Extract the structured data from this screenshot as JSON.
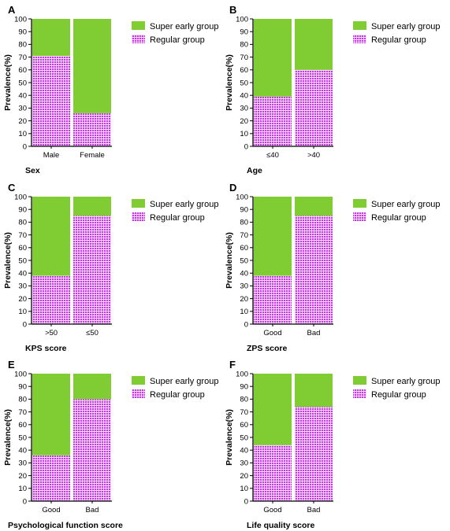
{
  "colors": {
    "super_early": "#7fcc33",
    "regular": "#cc33ee",
    "regular_bg": "#f6d9fb",
    "axis": "#000000"
  },
  "legend": [
    "Super early group",
    "Regular group"
  ],
  "chart_data": [
    {
      "type": "bar",
      "stacked": true,
      "panel": "A",
      "xlabel": "Sex",
      "ylabel": "Prevalence(%)",
      "ylim": [
        0,
        100
      ],
      "categories": [
        "Male",
        "Female"
      ],
      "series": [
        {
          "name": "Regular group",
          "values": [
            71,
            26
          ]
        },
        {
          "name": "Super early group",
          "values": [
            29,
            74
          ]
        }
      ]
    },
    {
      "type": "bar",
      "stacked": true,
      "panel": "B",
      "xlabel": "Age",
      "ylabel": "Prevalence(%)",
      "ylim": [
        0,
        100
      ],
      "categories": [
        "≤40",
        ">40"
      ],
      "series": [
        {
          "name": "Regular group",
          "values": [
            39,
            60
          ]
        },
        {
          "name": "Super early group",
          "values": [
            61,
            40
          ]
        }
      ]
    },
    {
      "type": "bar",
      "stacked": true,
      "panel": "C",
      "xlabel": "KPS score",
      "ylabel": "Prevalence(%)",
      "ylim": [
        0,
        100
      ],
      "categories": [
        ">50",
        "≤50"
      ],
      "series": [
        {
          "name": "Regular group",
          "values": [
            38,
            85
          ]
        },
        {
          "name": "Super early group",
          "values": [
            62,
            15
          ]
        }
      ]
    },
    {
      "type": "bar",
      "stacked": true,
      "panel": "D",
      "xlabel": "ZPS score",
      "ylabel": "Prevalence(%)",
      "ylim": [
        0,
        100
      ],
      "categories": [
        "Good",
        "Bad"
      ],
      "series": [
        {
          "name": "Regular group",
          "values": [
            38,
            85
          ]
        },
        {
          "name": "Super early group",
          "values": [
            62,
            15
          ]
        }
      ]
    },
    {
      "type": "bar",
      "stacked": true,
      "panel": "E",
      "xlabel": "Psychological function score",
      "ylabel": "Prevalence(%)",
      "ylim": [
        0,
        100
      ],
      "categories": [
        "Good",
        "Bad"
      ],
      "series": [
        {
          "name": "Regular group",
          "values": [
            36,
            80
          ]
        },
        {
          "name": "Super early group",
          "values": [
            64,
            20
          ]
        }
      ]
    },
    {
      "type": "bar",
      "stacked": true,
      "panel": "F",
      "xlabel": "Life quality score",
      "ylabel": "Prevalence(%)",
      "ylim": [
        0,
        100
      ],
      "categories": [
        "Good",
        "Bad"
      ],
      "series": [
        {
          "name": "Regular group",
          "values": [
            44,
            74
          ]
        },
        {
          "name": "Super early group",
          "values": [
            56,
            26
          ]
        }
      ]
    }
  ]
}
